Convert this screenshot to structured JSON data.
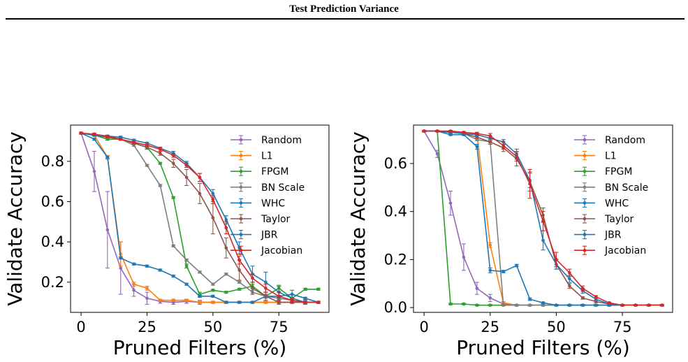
{
  "header": {
    "title": "Test Prediction Variance"
  },
  "colors": {
    "Random": "#9467bd",
    "L1": "#ff7f0e",
    "FPGM": "#2ca02c",
    "BN Scale": "#7f7f7f",
    "WHC": "#1f77b4",
    "Taylor": "#8c564b",
    "JBR": "#1f77b4",
    "Jacobian": "#d62728"
  },
  "chart_data": [
    {
      "type": "line",
      "xlabel": "Pruned Filters (%)",
      "ylabel": "Validate Accuracy",
      "xlim": [
        -4,
        94
      ],
      "ylim": [
        0.05,
        0.98
      ],
      "xticks": [
        0,
        25,
        50,
        75
      ],
      "yticks": [
        0.2,
        0.4,
        0.6,
        0.8
      ],
      "legend": "upper right",
      "series": [
        {
          "name": "Random",
          "x": [
            0,
            5,
            10,
            15,
            20,
            25,
            30,
            35,
            40,
            45,
            50,
            55,
            60,
            65,
            70,
            75,
            80,
            85,
            90
          ],
          "y": [
            0.94,
            0.75,
            0.46,
            0.27,
            0.16,
            0.12,
            0.105,
            0.1,
            0.105,
            0.1,
            0.1,
            0.1,
            0.1,
            0.1,
            0.1,
            0.1,
            0.1,
            0.1,
            0.1
          ],
          "err": [
            0.005,
            0.1,
            0.19,
            0.13,
            0.03,
            0.03,
            0.01,
            0.01,
            0.01,
            0.01,
            0.005,
            0.005,
            0.005,
            0.005,
            0.005,
            0.005,
            0.005,
            0.005,
            0.005
          ]
        },
        {
          "name": "L1",
          "x": [
            0,
            5,
            10,
            15,
            20,
            25,
            30,
            35,
            40,
            45,
            50,
            55,
            60,
            65,
            70,
            75,
            80,
            85,
            90
          ],
          "y": [
            0.94,
            0.93,
            0.82,
            0.34,
            0.19,
            0.17,
            0.11,
            0.11,
            0.11,
            0.1,
            0.1,
            0.1,
            0.1,
            0.1,
            0.1,
            0.1,
            0.1,
            0.1,
            0.1
          ],
          "err": [
            0.005,
            0.005,
            0.01,
            0.06,
            0.01,
            0.01,
            0.005,
            0.005,
            0.005,
            0.005,
            0.005,
            0.005,
            0.005,
            0.005,
            0.005,
            0.005,
            0.005,
            0.005,
            0.005
          ]
        },
        {
          "name": "FPGM",
          "x": [
            0,
            5,
            10,
            15,
            20,
            25,
            30,
            35,
            40,
            45,
            50,
            55,
            60,
            65,
            70,
            75,
            80,
            85,
            90
          ],
          "y": [
            0.94,
            0.93,
            0.91,
            0.91,
            0.89,
            0.87,
            0.79,
            0.62,
            0.28,
            0.14,
            0.16,
            0.15,
            0.165,
            0.18,
            0.13,
            0.17,
            0.12,
            0.165,
            0.165
          ],
          "err": [
            0.005,
            0.005,
            0.005,
            0.005,
            0.005,
            0.005,
            0.005,
            0.005,
            0.01,
            0.01,
            0.005,
            0.005,
            0.005,
            0.01,
            0.005,
            0.015,
            0.005,
            0.005,
            0.005
          ]
        },
        {
          "name": "BN Scale",
          "x": [
            0,
            5,
            10,
            15,
            20,
            25,
            30,
            35,
            40,
            45,
            50,
            55,
            60,
            65,
            70,
            75,
            80,
            85,
            90
          ],
          "y": [
            0.94,
            0.93,
            0.92,
            0.91,
            0.88,
            0.78,
            0.68,
            0.38,
            0.31,
            0.25,
            0.19,
            0.24,
            0.2,
            0.15,
            0.13,
            0.12,
            0.11,
            0.1,
            0.1
          ],
          "err": [
            0.005,
            0.005,
            0.005,
            0.005,
            0.005,
            0.005,
            0.005,
            0.005,
            0.005,
            0.005,
            0.005,
            0.005,
            0.005,
            0.01,
            0.005,
            0.005,
            0.005,
            0.005,
            0.005
          ]
        },
        {
          "name": "WHC",
          "x": [
            0,
            5,
            10,
            15,
            20,
            25,
            30,
            35,
            40,
            45,
            50,
            55,
            60,
            65,
            70,
            75,
            80,
            85,
            90
          ],
          "y": [
            0.94,
            0.91,
            0.82,
            0.32,
            0.29,
            0.28,
            0.26,
            0.23,
            0.19,
            0.13,
            0.13,
            0.1,
            0.1,
            0.1,
            0.13,
            0.13,
            0.14,
            0.12,
            0.1
          ],
          "err": [
            0.005,
            0.005,
            0.005,
            0.005,
            0.005,
            0.005,
            0.005,
            0.005,
            0.005,
            0.005,
            0.005,
            0.005,
            0.005,
            0.005,
            0.01,
            0.005,
            0.02,
            0.005,
            0.005
          ]
        },
        {
          "name": "Taylor",
          "x": [
            0,
            5,
            10,
            15,
            20,
            25,
            30,
            35,
            40,
            45,
            50,
            55,
            60,
            65,
            70,
            75,
            80,
            85,
            90
          ],
          "y": [
            0.94,
            0.93,
            0.92,
            0.91,
            0.89,
            0.87,
            0.84,
            0.79,
            0.72,
            0.64,
            0.52,
            0.37,
            0.26,
            0.17,
            0.13,
            0.1,
            0.1,
            0.1,
            0.1
          ],
          "err": [
            0.005,
            0.005,
            0.005,
            0.005,
            0.005,
            0.01,
            0.01,
            0.02,
            0.04,
            0.05,
            0.08,
            0.05,
            0.05,
            0.03,
            0.02,
            0.01,
            0.005,
            0.005,
            0.005
          ]
        },
        {
          "name": "JBR",
          "x": [
            0,
            5,
            10,
            15,
            20,
            25,
            30,
            35,
            40,
            45,
            50,
            55,
            60,
            65,
            70,
            75,
            80,
            85,
            90
          ],
          "y": [
            0.94,
            0.93,
            0.925,
            0.92,
            0.905,
            0.89,
            0.865,
            0.84,
            0.79,
            0.72,
            0.64,
            0.51,
            0.37,
            0.24,
            0.2,
            0.15,
            0.12,
            0.1,
            0.1
          ],
          "err": [
            0.005,
            0.005,
            0.005,
            0.005,
            0.005,
            0.005,
            0.005,
            0.01,
            0.01,
            0.02,
            0.02,
            0.02,
            0.03,
            0.04,
            0.05,
            0.03,
            0.02,
            0.01,
            0.005
          ]
        },
        {
          "name": "Jacobian",
          "x": [
            0,
            5,
            10,
            15,
            20,
            25,
            30,
            35,
            40,
            45,
            50,
            55,
            60,
            65,
            70,
            75,
            80,
            85,
            90
          ],
          "y": [
            0.94,
            0.935,
            0.925,
            0.91,
            0.895,
            0.88,
            0.86,
            0.83,
            0.78,
            0.72,
            0.61,
            0.47,
            0.31,
            0.22,
            0.17,
            0.13,
            0.11,
            0.1,
            0.1
          ],
          "err": [
            0.005,
            0.005,
            0.005,
            0.005,
            0.005,
            0.005,
            0.01,
            0.01,
            0.01,
            0.02,
            0.02,
            0.03,
            0.02,
            0.02,
            0.02,
            0.02,
            0.01,
            0.005,
            0.005
          ]
        }
      ]
    },
    {
      "type": "line",
      "xlabel": "Pruned Filters (%)",
      "ylabel": "Validate Accuracy",
      "xlim": [
        -4,
        94
      ],
      "ylim": [
        -0.02,
        0.76
      ],
      "xticks": [
        0,
        25,
        50,
        75
      ],
      "yticks": [
        0.0,
        0.2,
        0.4,
        0.6
      ],
      "legend": "upper right",
      "series": [
        {
          "name": "Random",
          "x": [
            0,
            5,
            10,
            15,
            20,
            25,
            30,
            35,
            40,
            45,
            50,
            55,
            60,
            65,
            70,
            75,
            80,
            85,
            90
          ],
          "y": [
            0.735,
            0.64,
            0.435,
            0.21,
            0.08,
            0.04,
            0.015,
            0.01,
            0.01,
            0.01,
            0.01,
            0.01,
            0.01,
            0.01,
            0.01,
            0.01,
            0.01,
            0.01,
            0.01
          ],
          "err": [
            0.003,
            0.015,
            0.05,
            0.055,
            0.025,
            0.015,
            0.005,
            0.003,
            0.003,
            0.003,
            0.003,
            0.003,
            0.003,
            0.003,
            0.003,
            0.003,
            0.003,
            0.003,
            0.003
          ]
        },
        {
          "name": "L1",
          "x": [
            0,
            5,
            10,
            15,
            20,
            25,
            30,
            35,
            40,
            45,
            50,
            55,
            60,
            65,
            70,
            75,
            80,
            85,
            90
          ],
          "y": [
            0.735,
            0.735,
            0.73,
            0.725,
            0.72,
            0.26,
            0.02,
            0.01,
            0.01,
            0.01,
            0.01,
            0.01,
            0.01,
            0.01,
            0.01,
            0.01,
            0.01,
            0.01,
            0.01
          ],
          "err": [
            0.003,
            0.003,
            0.003,
            0.003,
            0.005,
            0.01,
            0.005,
            0.003,
            0.003,
            0.003,
            0.003,
            0.003,
            0.003,
            0.003,
            0.003,
            0.003,
            0.003,
            0.003,
            0.003
          ]
        },
        {
          "name": "FPGM",
          "x": [
            0,
            5,
            10,
            15,
            20,
            25,
            30,
            35,
            40,
            45,
            50,
            55,
            60,
            65,
            70,
            75,
            80,
            85,
            90
          ],
          "y": [
            0.735,
            0.735,
            0.015,
            0.015,
            0.01,
            0.01,
            0.01,
            0.01,
            0.01,
            0.01,
            0.01,
            0.01,
            0.01,
            0.01,
            0.01,
            0.01,
            0.01,
            0.01,
            0.01
          ],
          "err": [
            0.003,
            0.003,
            0.003,
            0.003,
            0.003,
            0.003,
            0.003,
            0.003,
            0.003,
            0.003,
            0.003,
            0.003,
            0.003,
            0.003,
            0.003,
            0.003,
            0.003,
            0.003,
            0.003
          ]
        },
        {
          "name": "BN Scale",
          "x": [
            0,
            5,
            10,
            15,
            20,
            25,
            30,
            35,
            40,
            45,
            50,
            55,
            60,
            65,
            70,
            75,
            80,
            85,
            90
          ],
          "y": [
            0.735,
            0.735,
            0.73,
            0.725,
            0.7,
            0.69,
            0.01,
            0.01,
            0.01,
            0.01,
            0.01,
            0.01,
            0.01,
            0.01,
            0.01,
            0.01,
            0.01,
            0.01,
            0.01
          ],
          "err": [
            0.003,
            0.003,
            0.003,
            0.003,
            0.005,
            0.005,
            0.003,
            0.003,
            0.003,
            0.003,
            0.003,
            0.003,
            0.003,
            0.003,
            0.003,
            0.003,
            0.003,
            0.003,
            0.003
          ]
        },
        {
          "name": "WHC",
          "x": [
            0,
            5,
            10,
            15,
            20,
            25,
            30,
            35,
            40,
            45,
            50,
            55,
            60,
            65,
            70,
            75,
            80,
            85,
            90
          ],
          "y": [
            0.735,
            0.735,
            0.72,
            0.72,
            0.67,
            0.155,
            0.15,
            0.175,
            0.035,
            0.02,
            0.01,
            0.01,
            0.01,
            0.01,
            0.01,
            0.01,
            0.01,
            0.01,
            0.01
          ],
          "err": [
            0.003,
            0.003,
            0.003,
            0.003,
            0.01,
            0.01,
            0.005,
            0.005,
            0.005,
            0.003,
            0.003,
            0.003,
            0.003,
            0.003,
            0.003,
            0.003,
            0.003,
            0.003,
            0.003
          ]
        },
        {
          "name": "Taylor",
          "x": [
            0,
            5,
            10,
            15,
            20,
            25,
            30,
            35,
            40,
            45,
            50,
            55,
            60,
            65,
            70,
            75,
            80,
            85,
            90
          ],
          "y": [
            0.735,
            0.735,
            0.73,
            0.725,
            0.71,
            0.69,
            0.665,
            0.62,
            0.525,
            0.385,
            0.18,
            0.09,
            0.04,
            0.025,
            0.015,
            0.01,
            0.01,
            0.01,
            0.01
          ],
          "err": [
            0.003,
            0.003,
            0.003,
            0.003,
            0.005,
            0.01,
            0.015,
            0.03,
            0.04,
            0.03,
            0.02,
            0.01,
            0.005,
            0.005,
            0.003,
            0.003,
            0.003,
            0.003,
            0.003
          ]
        },
        {
          "name": "JBR",
          "x": [
            0,
            5,
            10,
            15,
            20,
            25,
            30,
            35,
            40,
            45,
            50,
            55,
            60,
            65,
            70,
            75,
            80,
            85,
            90
          ],
          "y": [
            0.735,
            0.735,
            0.73,
            0.725,
            0.72,
            0.705,
            0.69,
            0.64,
            0.53,
            0.28,
            0.18,
            0.12,
            0.07,
            0.035,
            0.015,
            0.01,
            0.01,
            0.01,
            0.01
          ],
          "err": [
            0.003,
            0.003,
            0.003,
            0.003,
            0.005,
            0.01,
            0.01,
            0.02,
            0.03,
            0.04,
            0.02,
            0.015,
            0.01,
            0.005,
            0.003,
            0.003,
            0.003,
            0.003,
            0.003
          ]
        },
        {
          "name": "Jacobian",
          "x": [
            0,
            5,
            10,
            15,
            20,
            25,
            30,
            35,
            40,
            45,
            50,
            55,
            60,
            65,
            70,
            75,
            80,
            85,
            90
          ],
          "y": [
            0.735,
            0.735,
            0.735,
            0.73,
            0.725,
            0.715,
            0.675,
            0.63,
            0.515,
            0.36,
            0.2,
            0.145,
            0.08,
            0.045,
            0.02,
            0.01,
            0.01,
            0.01,
            0.01
          ],
          "err": [
            0.003,
            0.003,
            0.003,
            0.003,
            0.005,
            0.01,
            0.015,
            0.02,
            0.06,
            0.04,
            0.03,
            0.015,
            0.01,
            0.005,
            0.003,
            0.003,
            0.003,
            0.003,
            0.003
          ]
        }
      ]
    }
  ]
}
